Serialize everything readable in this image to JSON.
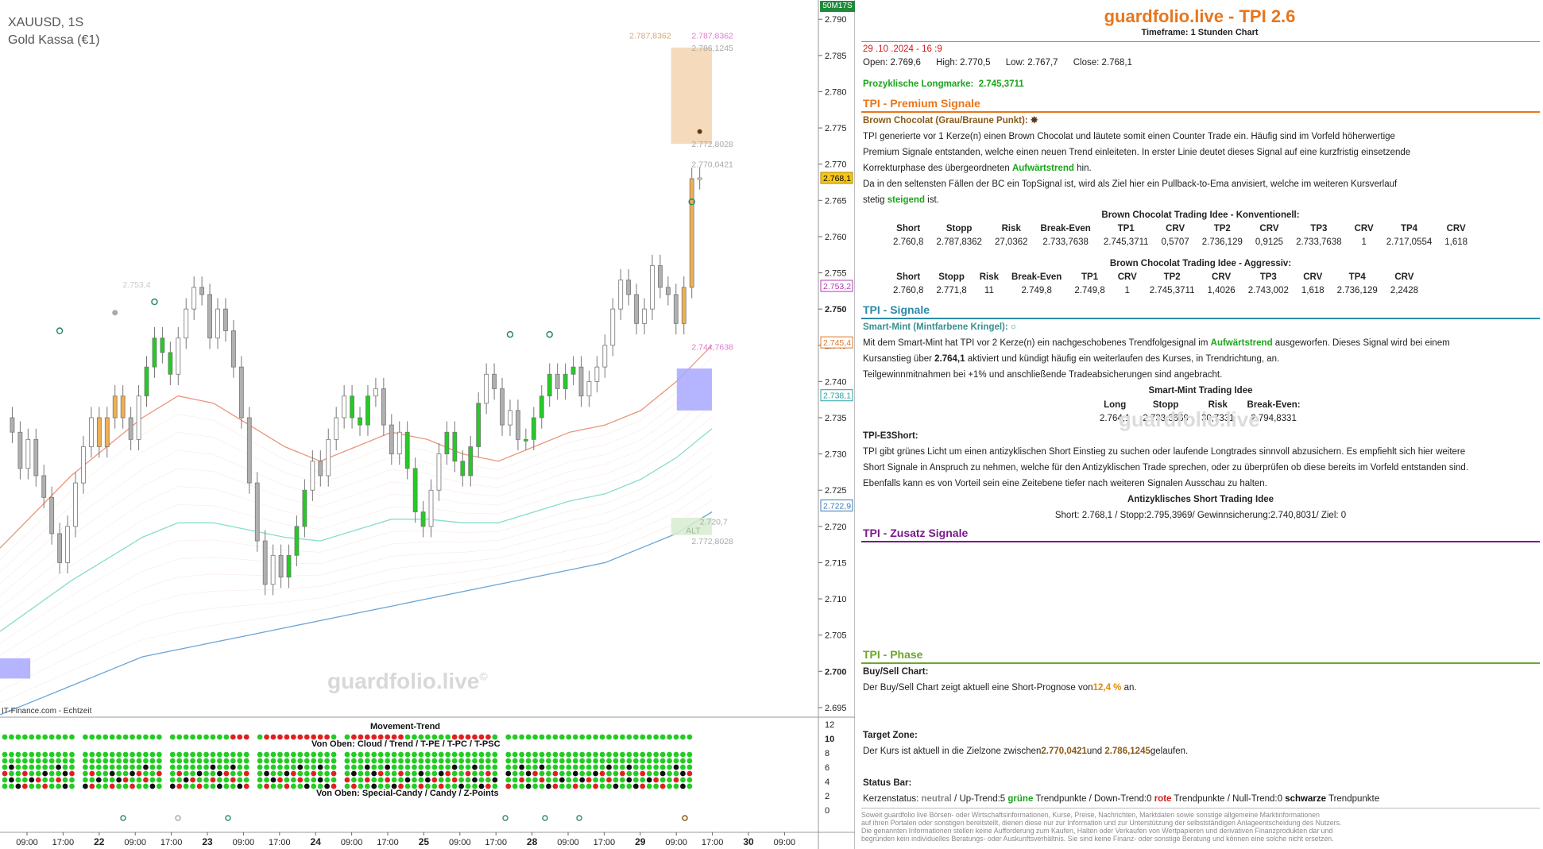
{
  "chart": {
    "symbol": "XAUUSD, 1S",
    "name": "Gold Kassa (€1)",
    "watermark": "guardfolio.live",
    "watermark_mark": "©",
    "source": "IT-Finance.com - Echtzeit",
    "corner_label": "50M17S",
    "y_axis": {
      "min": 2.694,
      "max": 2.792,
      "ticks": [
        "2.790",
        "2.785",
        "2.780",
        "2.775",
        "2.770",
        "2.765",
        "2.760",
        "2.755",
        "2.750",
        "2.745",
        "2.740",
        "2.735",
        "2.730",
        "2.725",
        "2.720",
        "2.715",
        "2.710",
        "2.705",
        "2.700",
        "2.695"
      ],
      "tick_values": [
        2.79,
        2.785,
        2.78,
        2.775,
        2.77,
        2.765,
        2.76,
        2.755,
        2.75,
        2.745,
        2.74,
        2.735,
        2.73,
        2.725,
        2.72,
        2.715,
        2.71,
        2.705,
        2.7,
        2.695
      ]
    },
    "x_axis": {
      "ticks": [
        "09:00",
        "17:00",
        "22",
        "09:00",
        "17:00",
        "23",
        "09:00",
        "17:00",
        "24",
        "09:00",
        "17:00",
        "25",
        "09:00",
        "17:00",
        "28",
        "09:00",
        "17:00",
        "29",
        "09:00",
        "17:00",
        "30",
        "09:00"
      ]
    },
    "price_tags": [
      {
        "text": "2.768,1",
        "value": 2.7681,
        "bg": "#f5c518",
        "color": "#000",
        "border": "#b08a00"
      },
      {
        "text": "2.753,2",
        "value": 2.7532,
        "bg": "#ffffff",
        "color": "#b03ab0",
        "border": "#b03ab0"
      },
      {
        "text": "2.745,4",
        "value": 2.7454,
        "bg": "#ffffff",
        "color": "#e07a2a",
        "border": "#e07a2a"
      },
      {
        "text": "2.738,1",
        "value": 2.7381,
        "bg": "#ffffff",
        "color": "#2aa0a0",
        "border": "#2aa0a0"
      },
      {
        "text": "2.722,9",
        "value": 2.7229,
        "bg": "#ffffff",
        "color": "#3a7ab8",
        "border": "#3a7ab8"
      }
    ],
    "annotations": [
      {
        "text": "2.787,8362",
        "value": 2.7878,
        "x": 0.82,
        "color": "#d4a97a",
        "anchor": "end"
      },
      {
        "text": "2.787,8362",
        "value": 2.7878,
        "x": 0.845,
        "color": "#e07ad0",
        "anchor": "start"
      },
      {
        "text": "2.786,1245",
        "value": 2.7861,
        "x": 0.845,
        "color": "#aaaaaa",
        "anchor": "start"
      },
      {
        "text": "2.772,8028",
        "value": 2.7728,
        "x": 0.845,
        "color": "#aaaaaa",
        "anchor": "start"
      },
      {
        "text": "2.770,0421",
        "value": 2.77,
        "x": 0.845,
        "color": "#aaaaaa",
        "anchor": "start"
      },
      {
        "text": "2.753,4",
        "value": 2.7534,
        "x": 0.15,
        "color": "#cccccc",
        "anchor": "start"
      },
      {
        "text": "2.744,7638",
        "value": 2.7448,
        "x": 0.845,
        "color": "#e07ad0",
        "anchor": "start"
      },
      {
        "text": "2.720,7",
        "value": 2.7207,
        "x": 0.855,
        "color": "#aaaaaa",
        "anchor": "start"
      },
      {
        "text": "ALT",
        "value": 2.7195,
        "x": 0.838,
        "color": "#9ab89a",
        "anchor": "start"
      },
      {
        "text": "2.772,8028",
        "value": 2.718,
        "x": 0.845,
        "color": "#aaaaaa",
        "anchor": "start"
      }
    ],
    "indicator": {
      "title_top": "Movement-Trend",
      "title_mid": "Von Oben: Cloud / Trend / T-PE / T-PC / T-PSC",
      "title_bottom": "Von Oben: Special-Candy / Candy / Z-Points",
      "y_ticks": [
        "12",
        "10",
        "8",
        "6",
        "4",
        "2",
        "0"
      ],
      "colors": {
        "green": "#22cc22",
        "red": "#e02020",
        "black": "#111111"
      }
    }
  },
  "chart_data": {
    "type": "candlestick",
    "title": "XAUUSD, 1S",
    "ylim": [
      2.694,
      2.792
    ],
    "closes": [
      2.733,
      2.728,
      2.732,
      2.727,
      2.724,
      2.719,
      2.715,
      2.72,
      2.726,
      2.731,
      2.735,
      2.731,
      2.735,
      2.738,
      2.735,
      2.732,
      2.738,
      2.742,
      2.746,
      2.744,
      2.741,
      2.746,
      2.75,
      2.753,
      2.752,
      2.746,
      2.75,
      2.747,
      2.742,
      2.735,
      2.726,
      2.718,
      2.712,
      2.716,
      2.713,
      2.716,
      2.72,
      2.725,
      2.729,
      2.727,
      2.732,
      2.735,
      2.738,
      2.735,
      2.734,
      2.738,
      2.739,
      2.734,
      2.73,
      2.733,
      2.728,
      2.722,
      2.72,
      2.725,
      2.73,
      2.733,
      2.729,
      2.727,
      2.731,
      2.737,
      2.741,
      2.739,
      2.734,
      2.736,
      2.732,
      2.732,
      2.735,
      2.738,
      2.741,
      2.739,
      2.741,
      2.742,
      2.738,
      2.74,
      2.742,
      2.745,
      2.75,
      2.754,
      2.752,
      2.748,
      2.75,
      2.756,
      2.753,
      2.752,
      2.748,
      2.753,
      2.768,
      2.7681
    ],
    "highlight_candles": {
      "orange": [
        11,
        12,
        13,
        14,
        85,
        86
      ],
      "green": [
        17,
        18,
        19,
        20,
        35,
        36,
        37,
        43,
        44,
        45,
        50,
        51,
        52,
        55,
        56,
        57,
        58,
        59,
        65,
        66,
        67,
        68,
        70,
        71
      ]
    },
    "ema_ribbon": {
      "upper": [
        2.717,
        2.722,
        2.727,
        2.731,
        2.735,
        2.738,
        2.737,
        2.734,
        2.731,
        2.729,
        2.731,
        2.733,
        2.732,
        2.73,
        2.729,
        2.731,
        2.733,
        2.734,
        2.736,
        2.74,
        2.745
      ],
      "lower": [
        2.694,
        2.696,
        2.698,
        2.7,
        2.702,
        2.703,
        2.704,
        2.705,
        2.706,
        2.707,
        2.708,
        2.709,
        2.71,
        2.711,
        2.712,
        2.713,
        2.714,
        2.715,
        2.717,
        2.719,
        2.722
      ]
    },
    "zones": [
      {
        "type": "box",
        "x0": 0.82,
        "x1": 0.87,
        "y0": 2.7728,
        "y1": 2.7861,
        "color": "#f5d3b0"
      },
      {
        "type": "box",
        "x0": 0.827,
        "x1": 0.87,
        "y0": 2.736,
        "y1": 2.7418,
        "color": "#a8a8ff"
      },
      {
        "type": "box",
        "x0": 0.0,
        "x1": 0.037,
        "y0": 2.699,
        "y1": 2.7018,
        "color": "#a8a8ff"
      },
      {
        "type": "box",
        "x0": 0.82,
        "x1": 0.87,
        "y0": 2.7188,
        "y1": 2.7212,
        "color": "#d8ecd0"
      }
    ]
  },
  "panel": {
    "title": "guardfolio.live - TPI 2.6",
    "timeframe": "Timeframe: 1 Stunden Chart",
    "date": "29 .10 .2024  - 16 :9",
    "ohlc": {
      "open_label": "Open:",
      "open": "2.769,6",
      "high_label": "High:",
      "high": "2.770,5",
      "low_label": "Low:",
      "low": "2.767,7",
      "close_label": "Close:",
      "close": "2.768,1"
    },
    "longmark_label": "Prozyklische Longmarke:",
    "longmark_value": "2.745,3711",
    "premium": {
      "head": "TPI - Premium Signale",
      "color": "#e8761c",
      "sub": "Brown Chocolat (Grau/Braune Punkt):",
      "l1": "TPI generierte vor 1  Kerze(n) einen Brown Chocolat und läutete somit einen Counter Trade ein. Häufig sind im Vorfeld höherwertige",
      "l2": "Premium Signale entstanden, welche einen neuen Trend einleiteten. In erster Linie deutet dieses Signal auf eine kurzfristig einsetzende",
      "l3a": "Korrekturphase des übergeordneten ",
      "l3b": "Aufwärtstrend",
      "l3c": "  hin.",
      "l4": "Da in den seltensten Fällen der BC ein TopSignal ist, wird als Ziel hier ein Pullback-to-Ema anvisiert, welche im weiteren Kursverlauf",
      "l5a": "stetig ",
      "l5b": "steigend",
      "l5c": " ist.",
      "t1_title": "Brown Chocolat Trading Idee - Konventionell:",
      "t1_head": [
        "Short",
        "Stopp",
        "Risk",
        "Break-Even",
        "TP1",
        "CRV",
        "TP2",
        "CRV",
        "TP3",
        "CRV",
        "TP4",
        "CRV"
      ],
      "t1_row": [
        "2.760,8",
        "2.787,8362",
        "27,0362",
        "2.733,7638",
        "2.745,3711",
        "0,5707",
        "2.736,129",
        "0,9125",
        "2.733,7638",
        "1",
        "2.717,0554",
        "1,618"
      ],
      "t2_title": "Brown Chocolat Trading Idee - Aggressiv:",
      "t2_head": [
        "Short",
        "Stopp",
        "Risk",
        "Break-Even",
        "TP1",
        "CRV",
        "TP2",
        "CRV",
        "TP3",
        "CRV",
        "TP4",
        "CRV"
      ],
      "t2_row": [
        "2.760,8",
        "2.771,8",
        "11",
        "2.749,8",
        "2.749,8",
        "1",
        "2.745,3711",
        "1,4026",
        "2.743,002",
        "1,618",
        "2.736,129",
        "2,2428"
      ]
    },
    "signale": {
      "head": "TPI - Signale",
      "color": "#2a8aa8",
      "sub": "Smart-Mint (Mintfarbene Kringel):",
      "l1a": "Mit dem Smart-Mint hat TPI vor 2  Kerze(n) ein nachgeschobenes Trendfolgesignal im  ",
      "l1b": "Aufwärtstrend",
      "l1c": " ausgeworfen. Dieses Signal wird bei einem",
      "l2a": "Kursanstieg über   ",
      "l2b": "2.764,1",
      "l2c": "     aktiviert und kündigt häufig ein weiterlaufen des Kurses, in Trendrichtung, an.",
      "l3": " Teilgewinnmitnahmen bei +1% und anschließende Tradeabsicherungen sind angebracht.",
      "sm_title": "Smart-Mint Trading Idee",
      "sm_head": [
        "Long",
        "Stopp",
        "Risk",
        "Break-Even:"
      ],
      "sm_row": [
        "2.764,1",
        "2.733,3669",
        "30,7331",
        "2.794,8331"
      ],
      "e3_title": "TPI-E3Short:",
      "e3_l1": "TPI gibt grünes Licht um einen antizyklischen Short Einstieg zu suchen oder laufende Longtrades sinnvoll abzusichern. Es empfiehlt sich hier weitere",
      "e3_l2": "Short Signale in Anspruch zu nehmen, welche für den Antizyklischen Trade sprechen, oder zu überprüfen ob diese bereits im Vorfeld entstanden sind.",
      "e3_l3": "Ebenfalls kann es von Vorteil sein eine Zeitebene tiefer nach weiteren Signalen Ausschau zu halten.",
      "anti_title": "Antizyklisches Short Trading Idee",
      "anti_line": "Short:  2.768,1    / Stopp:2.795,3969/ Gewinnsicherung:2.740,8031/ Ziel:      0"
    },
    "zusatz": {
      "head": "TPI - Zusatz Signale",
      "color": "#7a1a8a"
    },
    "phase": {
      "head": "TPI - Phase",
      "color": "#6aa82a",
      "bs_title": "Buy/Sell Chart:",
      "bs_a": "Der Buy/Sell Chart zeigt aktuell eine Short-Prognose von",
      "bs_b": "12,4 %",
      "bs_c": " an.",
      "tz_title": "Target Zone:",
      "tz_a": "Der Kurs ist aktuell in die Zielzone zwischen",
      "tz_b": "2.770,0421",
      "tz_c": "und  ",
      "tz_d": "2.786,1245",
      "tz_e": "gelaufen.",
      "st_title": "Status Bar:",
      "st_a": "Kerzenstatus: ",
      "st_b": "neutral",
      "st_c": "  / Up-Trend:5 ",
      "st_d": "grüne",
      "st_e": " Trendpunkte  / Down-Trend:0 ",
      "st_f": "rote",
      "st_g": " Trendpunkte  / Null-Trend:0 ",
      "st_h": "schwarze",
      "st_i": " Trendpunkte"
    },
    "watermark": "guardfolio.live",
    "disclaimer": [
      "Soweit guardfolio live Börsen- oder Wirtschaftsinformationen, Kurse, Preise, Nachrichten, Marktdaten sowie sonstige allgemeine Marktinformationen",
      "auf ihren Portalen oder sonstigen bereitstellt, dienen diese nur zur Information und zur Unterstützung der selbstständigen Anlageentscheidung des Nutzers.",
      "Die genannten Informationen stellen keine Aufforderung zum Kaufen, Halten oder Verkaufen von Wertpapieren und derivativen Finanzprodukten dar und",
      "begründen kein individuelles Beratungs- oder Auskunftsverhältnis. Sie sind keine Finanz- oder sonstige Beratung und können eine solche nicht ersetzen."
    ]
  }
}
